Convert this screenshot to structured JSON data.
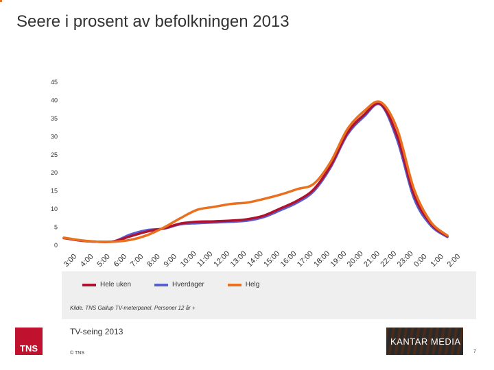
{
  "title": "Seere i prosent av befolkningen 2013",
  "source": "Kilde. TNS Gallup TV-meterpanel. Personer 12 år +",
  "subtitle": "TV-seing 2013",
  "copyright": "© TNS",
  "page_number": "7",
  "logos": {
    "tns": "TNS",
    "kantar": "KANTAR MEDIA"
  },
  "colors": {
    "hele_uken": "#b0112f",
    "hverdager": "#5a5fd0",
    "helg": "#e8701e"
  },
  "chart_data": {
    "type": "line",
    "title": "Seere i prosent av befolkningen 2013",
    "xlabel": "",
    "ylabel": "",
    "ylim": [
      0,
      45
    ],
    "yticks": [
      0,
      5,
      10,
      15,
      20,
      25,
      30,
      35,
      40,
      45
    ],
    "grid": false,
    "legend_position": "bottom",
    "x": [
      "3:00",
      "4:00",
      "5:00",
      "6:00",
      "7:00",
      "8:00",
      "9:00",
      "10:00",
      "11:00",
      "12:00",
      "13:00",
      "14:00",
      "15:00",
      "16:00",
      "17:00",
      "18:00",
      "19:00",
      "20:00",
      "21:00",
      "22:00",
      "23:00",
      "0:00",
      "1:00",
      "2:00"
    ],
    "series": [
      {
        "name": "Hele uken",
        "color": "#b0112f",
        "values": [
          2.0,
          1.3,
          1.0,
          1.1,
          2.5,
          3.8,
          4.7,
          6.0,
          6.5,
          6.6,
          6.8,
          7.2,
          8.2,
          10.2,
          12.3,
          15.5,
          22.0,
          31.0,
          36.0,
          39.0,
          30.0,
          14.0,
          6.0,
          2.5
        ]
      },
      {
        "name": "Hverdager",
        "color": "#5a5fd0",
        "values": [
          2.0,
          1.3,
          1.0,
          1.1,
          3.0,
          4.2,
          4.6,
          5.8,
          6.1,
          6.3,
          6.5,
          6.8,
          7.8,
          9.7,
          11.8,
          15.0,
          21.5,
          30.5,
          35.5,
          38.8,
          29.0,
          13.0,
          5.5,
          2.3
        ]
      },
      {
        "name": "Helg",
        "color": "#e8701e",
        "values": [
          2.1,
          1.4,
          1.0,
          1.0,
          1.5,
          2.8,
          4.9,
          7.5,
          9.8,
          10.6,
          11.4,
          11.8,
          12.8,
          14.0,
          15.5,
          17.0,
          23.0,
          32.0,
          37.0,
          39.5,
          32.0,
          15.5,
          6.5,
          2.7
        ]
      }
    ]
  }
}
